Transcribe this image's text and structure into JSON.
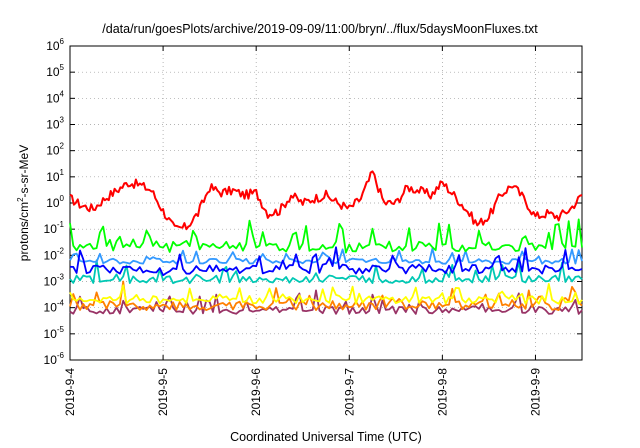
{
  "chart_data": {
    "type": "line",
    "title": "/data/run/goesPlots/archive/2019-09-09/11:00/bryn/../flux/5daysMoonFluxes.txt",
    "xlabel": "Coordinated Universal Time (UTC)",
    "ylabel_parts": [
      "protons/cm",
      "2",
      "-s-sr-MeV"
    ],
    "y_scale": "log",
    "ylim": [
      1e-06,
      1000000.0
    ],
    "xlim": [
      "2019-09-04T00:00",
      "2019-09-09T12:00"
    ],
    "x_ticks": [
      "2019-9-4",
      "2019-9-5",
      "2019-9-6",
      "2019-9-7",
      "2019-9-8",
      "2019-9-9"
    ],
    "y_ticks": [
      {
        "base": "10",
        "exp": "-6"
      },
      {
        "base": "10",
        "exp": "-5"
      },
      {
        "base": "10",
        "exp": "-4"
      },
      {
        "base": "10",
        "exp": "-3"
      },
      {
        "base": "10",
        "exp": "-2"
      },
      {
        "base": "10",
        "exp": "-1"
      },
      {
        "base": "10",
        "exp": "0"
      },
      {
        "base": "10",
        "exp": "1"
      },
      {
        "base": "10",
        "exp": "2"
      },
      {
        "base": "10",
        "exp": "3"
      },
      {
        "base": "10",
        "exp": "4"
      },
      {
        "base": "10",
        "exp": "5"
      },
      {
        "base": "10",
        "exp": "6"
      }
    ],
    "grid": true,
    "series": [
      {
        "color": "#ff0000",
        "x": [
          "2019-09-04T00:00",
          "2019-09-04T03:00",
          "2019-09-04T06:00",
          "2019-09-04T09:00",
          "2019-09-04T12:00",
          "2019-09-04T15:00",
          "2019-09-04T18:00",
          "2019-09-04T21:00",
          "2019-09-05T00:00",
          "2019-09-05T03:00",
          "2019-09-05T06:00",
          "2019-09-05T09:00",
          "2019-09-05T12:00",
          "2019-09-05T15:00",
          "2019-09-05T18:00",
          "2019-09-05T21:00",
          "2019-09-06T00:00",
          "2019-09-06T03:00",
          "2019-09-06T06:00",
          "2019-09-06T09:00",
          "2019-09-06T12:00",
          "2019-09-06T15:00",
          "2019-09-06T18:00",
          "2019-09-06T21:00",
          "2019-09-07T00:00",
          "2019-09-07T03:00",
          "2019-09-07T06:00",
          "2019-09-07T09:00",
          "2019-09-07T12:00",
          "2019-09-07T15:00",
          "2019-09-07T18:00",
          "2019-09-07T21:00",
          "2019-09-08T00:00",
          "2019-09-08T03:00",
          "2019-09-08T06:00",
          "2019-09-08T09:00",
          "2019-09-08T12:00",
          "2019-09-08T15:00",
          "2019-09-08T18:00",
          "2019-09-08T21:00",
          "2019-09-09T00:00",
          "2019-09-09T03:00",
          "2019-09-09T06:00",
          "2019-09-09T09:00",
          "2019-09-09T12:00"
        ],
        "y": [
          1.5,
          0.8,
          0.6,
          1.5,
          3,
          6,
          5,
          3,
          0.5,
          0.1,
          0.12,
          0.4,
          4,
          2.5,
          3,
          2,
          2.5,
          0.4,
          0.5,
          2,
          1,
          1.5,
          2,
          1,
          0.6,
          1.5,
          15,
          1,
          1,
          4,
          3,
          2,
          6,
          2,
          0.6,
          0.15,
          0.3,
          2,
          5,
          1.5,
          0.3,
          0.4,
          0.3,
          0.6,
          2
        ]
      },
      {
        "color": "#00ff00",
        "x": [
          "2019-09-04T00:00",
          "2019-09-04T12:00",
          "2019-09-05T00:00",
          "2019-09-05T12:00",
          "2019-09-06T00:00",
          "2019-09-06T12:00",
          "2019-09-07T00:00",
          "2019-09-07T12:00",
          "2019-09-08T00:00",
          "2019-09-08T12:00",
          "2019-09-09T00:00",
          "2019-09-09T12:00"
        ],
        "y": [
          0.02,
          0.025,
          0.02,
          0.025,
          0.02,
          0.02,
          0.02,
          0.02,
          0.025,
          0.02,
          0.02,
          0.02
        ]
      },
      {
        "color": "#0000ff",
        "x": [
          "2019-09-04T00:00",
          "2019-09-04T12:00",
          "2019-09-05T00:00",
          "2019-09-05T12:00",
          "2019-09-06T00:00",
          "2019-09-06T12:00",
          "2019-09-07T00:00",
          "2019-09-07T12:00",
          "2019-09-08T00:00",
          "2019-09-08T12:00",
          "2019-09-09T00:00",
          "2019-09-09T12:00"
        ],
        "y": [
          0.003,
          0.003,
          0.0025,
          0.003,
          0.003,
          0.003,
          0.003,
          0.003,
          0.003,
          0.003,
          0.003,
          0.003
        ]
      },
      {
        "color": "#3399ff",
        "x": [
          "2019-09-04T00:00",
          "2019-09-04T12:00",
          "2019-09-05T00:00",
          "2019-09-05T12:00",
          "2019-09-06T00:00",
          "2019-09-06T12:00",
          "2019-09-07T00:00",
          "2019-09-07T12:00",
          "2019-09-08T00:00",
          "2019-09-08T12:00",
          "2019-09-09T00:00",
          "2019-09-09T12:00"
        ],
        "y": [
          0.006,
          0.006,
          0.006,
          0.006,
          0.006,
          0.006,
          0.006,
          0.006,
          0.006,
          0.006,
          0.006,
          0.006
        ]
      },
      {
        "color": "#00c8b4",
        "x": [
          "2019-09-04T00:00",
          "2019-09-04T12:00",
          "2019-09-05T00:00",
          "2019-09-05T12:00",
          "2019-09-06T00:00",
          "2019-09-06T12:00",
          "2019-09-07T00:00",
          "2019-09-07T12:00",
          "2019-09-08T00:00",
          "2019-09-08T12:00",
          "2019-09-09T00:00",
          "2019-09-09T12:00"
        ],
        "y": [
          0.0012,
          0.0012,
          0.0012,
          0.0012,
          0.0012,
          0.0012,
          0.0012,
          0.0012,
          0.0012,
          0.0012,
          0.0012,
          0.0012
        ]
      },
      {
        "color": "#ffff00",
        "x": [
          "2019-09-04T00:00",
          "2019-09-04T12:00",
          "2019-09-05T00:00",
          "2019-09-05T12:00",
          "2019-09-06T00:00",
          "2019-09-06T12:00",
          "2019-09-07T00:00",
          "2019-09-07T12:00",
          "2019-09-08T00:00",
          "2019-09-08T12:00",
          "2019-09-09T00:00",
          "2019-09-09T12:00"
        ],
        "y": [
          0.0002,
          0.0002,
          0.0002,
          0.0002,
          0.0002,
          0.0002,
          0.0002,
          0.0002,
          0.0002,
          0.0002,
          0.0002,
          0.0002
        ]
      },
      {
        "color": "#ff8000",
        "x": [
          "2019-09-04T00:00",
          "2019-09-04T12:00",
          "2019-09-05T00:00",
          "2019-09-05T12:00",
          "2019-09-06T00:00",
          "2019-09-06T12:00",
          "2019-09-07T00:00",
          "2019-09-07T12:00",
          "2019-09-08T00:00",
          "2019-09-08T12:00",
          "2019-09-09T00:00",
          "2019-09-09T12:00"
        ],
        "y": [
          0.00012,
          0.00012,
          0.00012,
          0.00012,
          0.00012,
          0.00012,
          0.00012,
          0.00012,
          0.00012,
          0.00012,
          0.00012,
          0.00012
        ]
      },
      {
        "color": "#993366",
        "x": [
          "2019-09-04T00:00",
          "2019-09-04T12:00",
          "2019-09-05T00:00",
          "2019-09-05T12:00",
          "2019-09-06T00:00",
          "2019-09-06T12:00",
          "2019-09-07T00:00",
          "2019-09-07T12:00",
          "2019-09-08T00:00",
          "2019-09-08T12:00",
          "2019-09-09T00:00",
          "2019-09-09T12:00"
        ],
        "y": [
          8e-05,
          8e-05,
          8e-05,
          8e-05,
          8e-05,
          8e-05,
          8e-05,
          8e-05,
          8e-05,
          8e-05,
          8e-05,
          8e-05
        ]
      }
    ]
  }
}
